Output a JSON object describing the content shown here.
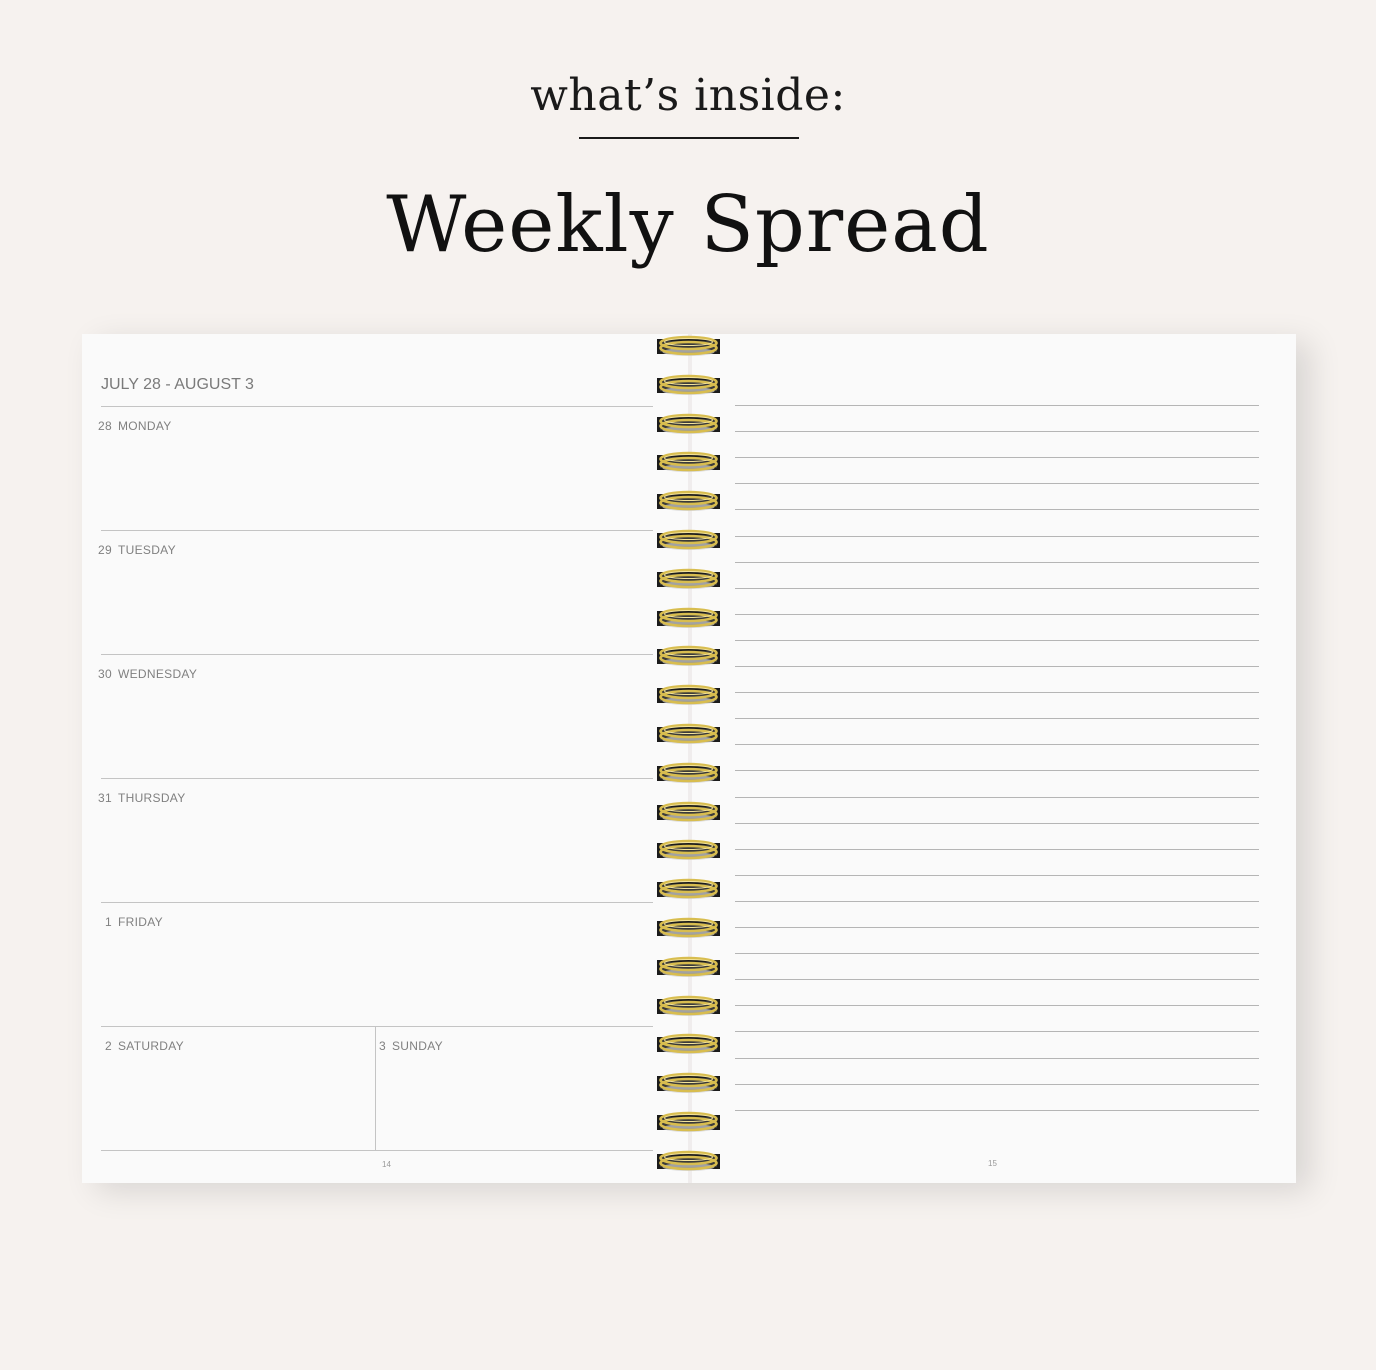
{
  "header": {
    "kicker": "what’s inside:",
    "title": "Weekly Spread"
  },
  "left_page": {
    "week_range": "JULY 28 - AUGUST 3",
    "days": [
      {
        "num": "28",
        "name": "MONDAY"
      },
      {
        "num": "29",
        "name": "TUESDAY"
      },
      {
        "num": "30",
        "name": "WEDNESDAY"
      },
      {
        "num": "31",
        "name": "THURSDAY"
      },
      {
        "num": "1",
        "name": "FRIDAY"
      }
    ],
    "weekend": [
      {
        "num": "2",
        "name": "SATURDAY"
      },
      {
        "num": "3",
        "name": "SUNDAY"
      }
    ],
    "page_number": "14"
  },
  "right_page": {
    "page_number": "15",
    "ruled_lines": 28
  },
  "binding": {
    "rings": 22,
    "ring_color": "#d8bd4f"
  },
  "colors": {
    "background": "#f6f2ef",
    "paper": "#fafafa"
  }
}
